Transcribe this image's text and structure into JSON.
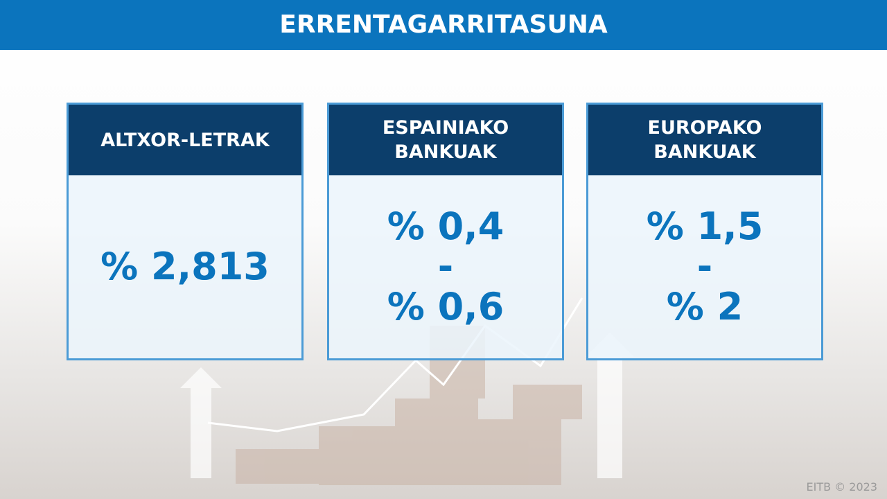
{
  "header": {
    "title": "ERRENTAGARRITASUNA"
  },
  "cards": [
    {
      "title": [
        "ALTXOR-LETRAK"
      ],
      "value": [
        "% 2,813"
      ]
    },
    {
      "title": [
        "ESPAINIAKO",
        "BANKUAK"
      ],
      "value": [
        "% 0,4",
        "-",
        "% 0,6"
      ]
    },
    {
      "title": [
        "EUROPAKO",
        "BANKUAK"
      ],
      "value": [
        "% 1,5",
        "-",
        "% 2"
      ]
    }
  ],
  "footer": {
    "credit": "EITB © 2023"
  }
}
